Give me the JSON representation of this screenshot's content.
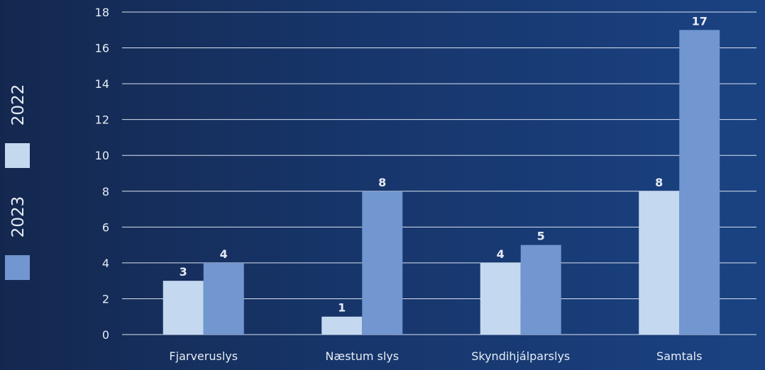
{
  "chart_data": {
    "type": "bar",
    "categories": [
      "Fjarveruslys",
      "Næstum slys",
      "Skyndihjálparslys",
      "Samtals"
    ],
    "series": [
      {
        "name": "2022",
        "values": [
          3,
          1,
          4,
          8
        ],
        "color": "#c4d9f0"
      },
      {
        "name": "2023",
        "values": [
          4,
          8,
          5,
          17
        ],
        "color": "#7196d0"
      }
    ],
    "ylim": [
      0,
      18
    ],
    "yticks": [
      0,
      2,
      4,
      6,
      8,
      10,
      12,
      14,
      16,
      18
    ],
    "grid": true,
    "legend_position": "left, vertical"
  }
}
